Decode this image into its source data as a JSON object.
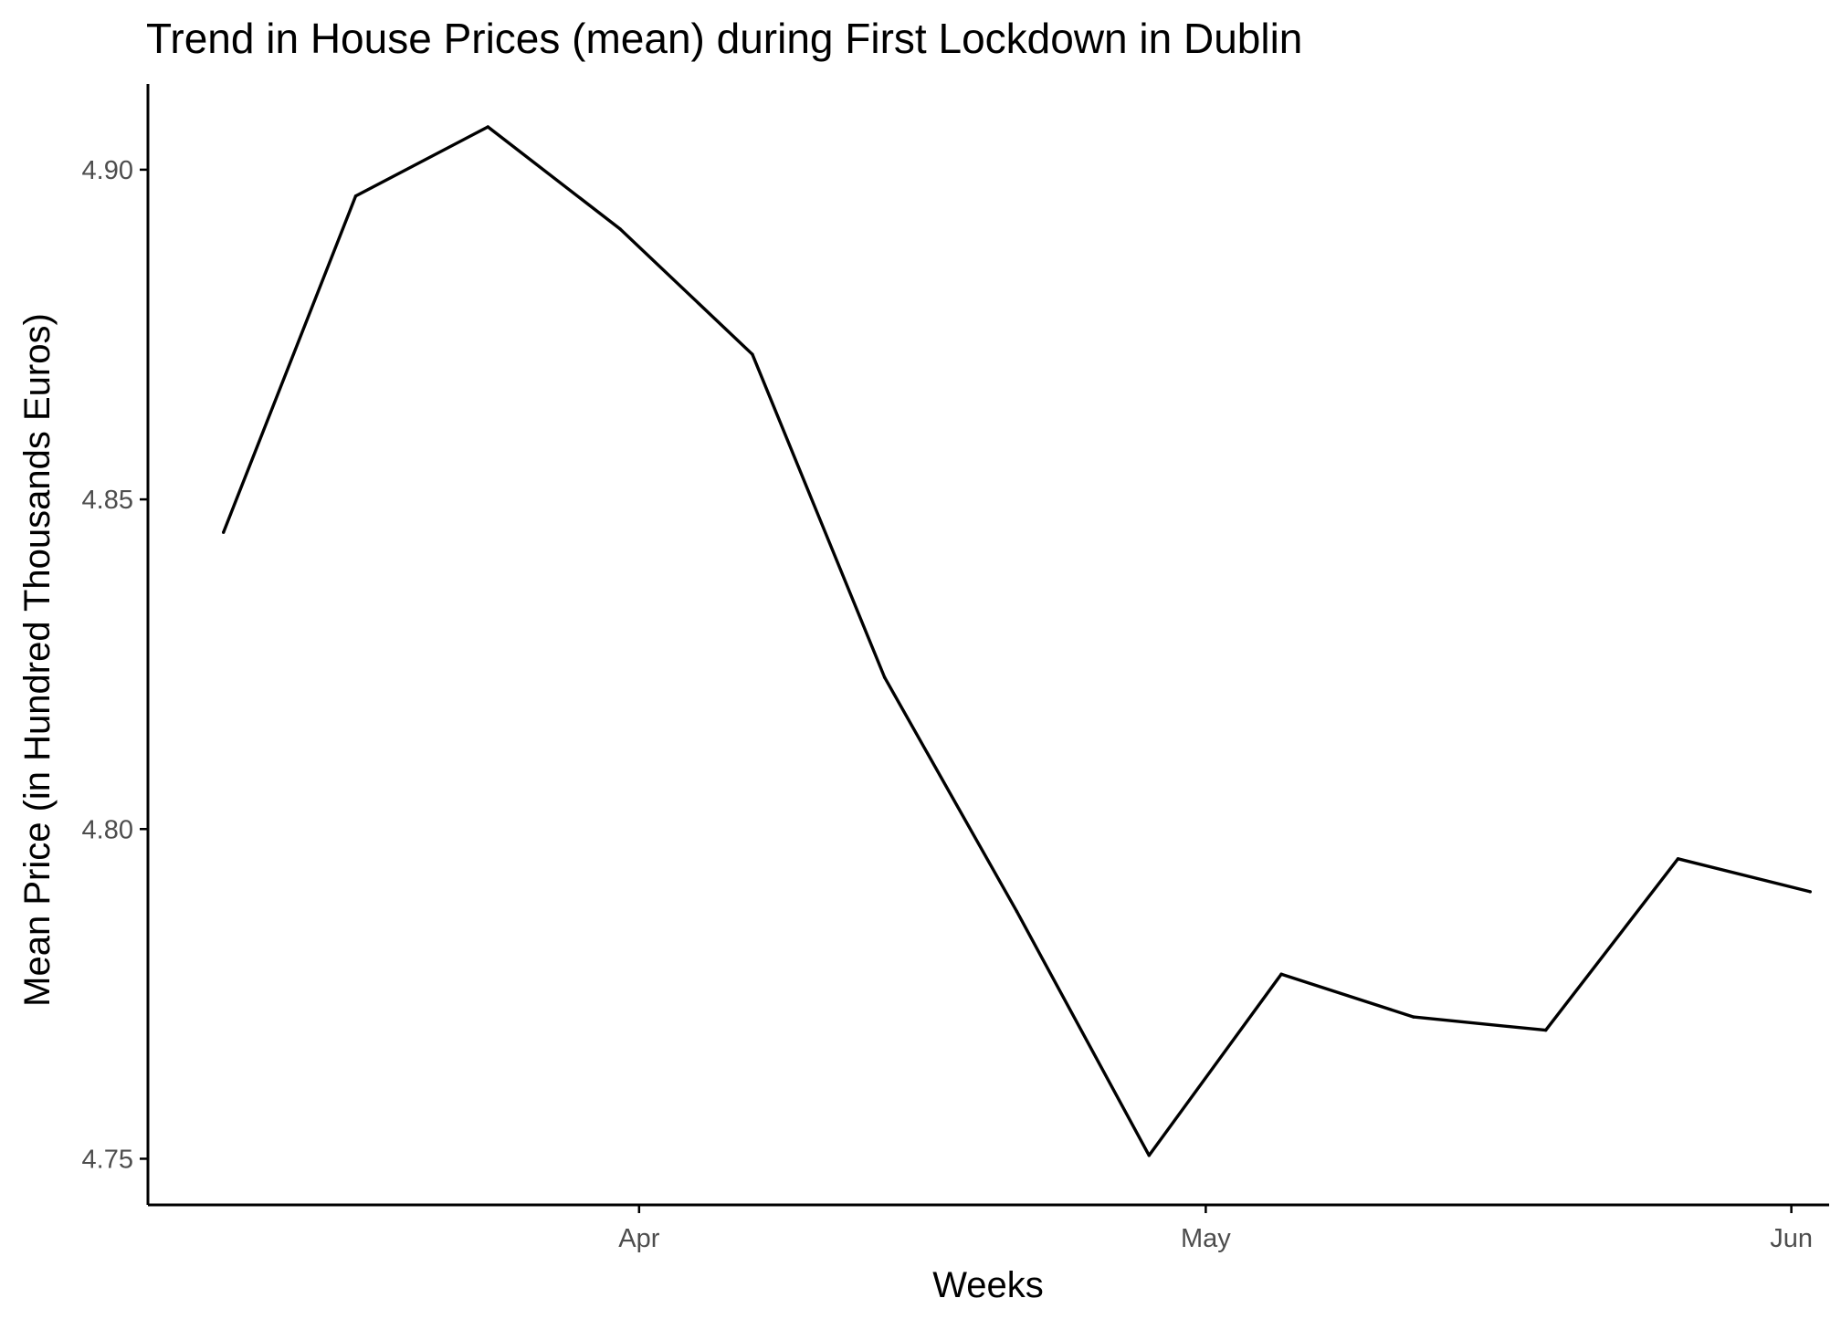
{
  "chart_data": {
    "type": "line",
    "title": "Trend in House Prices (mean) during First Lockdown in Dublin",
    "xlabel": "Weeks",
    "ylabel": "Mean Price (in Hundred Thousands Euros)",
    "x_axis_type": "date",
    "xlim": [
      "2020-03-06",
      "2020-06-03"
    ],
    "ylim": [
      4.743,
      4.913
    ],
    "x_ticks": [
      {
        "date": "2020-04-01",
        "label": "Apr"
      },
      {
        "date": "2020-05-01",
        "label": "May"
      },
      {
        "date": "2020-06-01",
        "label": "Jun"
      }
    ],
    "y_ticks": [
      {
        "value": 4.75,
        "label": "4.75"
      },
      {
        "value": 4.8,
        "label": "4.80"
      },
      {
        "value": 4.85,
        "label": "4.85"
      },
      {
        "value": 4.9,
        "label": "4.90"
      }
    ],
    "grid": false,
    "legend": "none",
    "colors": {
      "line": "#000000",
      "axis": "#000000",
      "tick_label": "#4d4d4d",
      "background": "#ffffff"
    },
    "series": [
      {
        "x": [
          "2020-03-10",
          "2020-03-17",
          "2020-03-24",
          "2020-03-31",
          "2020-04-07",
          "2020-04-14",
          "2020-04-21",
          "2020-04-28",
          "2020-05-05",
          "2020-05-12",
          "2020-05-19",
          "2020-05-26",
          "2020-06-02"
        ],
        "values": [
          4.845,
          4.896,
          4.9065,
          4.891,
          4.872,
          4.823,
          4.7875,
          4.7505,
          4.778,
          4.7715,
          4.7695,
          4.7955,
          4.7905
        ]
      }
    ]
  }
}
